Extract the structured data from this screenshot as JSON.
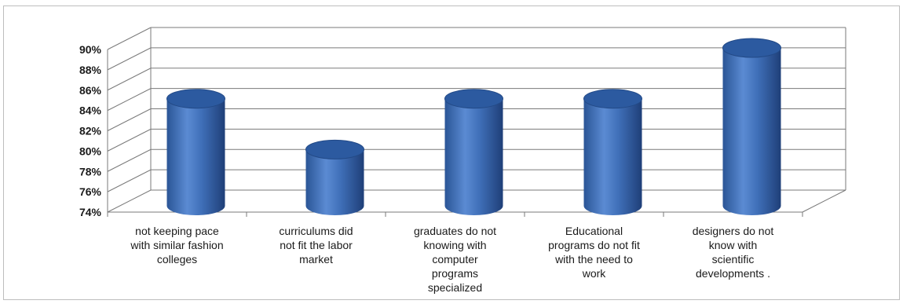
{
  "chart_data": {
    "type": "bar",
    "style": "3d-cylinder",
    "categories": [
      [
        "not keeping pace",
        "with similar fashion",
        "colleges"
      ],
      [
        "curriculums did",
        "not fit the labor",
        "market"
      ],
      [
        "graduates do not",
        "knowing with",
        "computer",
        "programs",
        "specialized"
      ],
      [
        "Educational",
        "programs do not fit",
        "with the need to",
        "work"
      ],
      [
        "designers do not",
        "know with",
        "scientific",
        "developments ."
      ]
    ],
    "values": [
      85,
      80,
      85,
      85,
      90
    ],
    "ylim": [
      74,
      90
    ],
    "yticks": [
      "74%",
      "76%",
      "78%",
      "80%",
      "82%",
      "84%",
      "86%",
      "88%",
      "90%"
    ],
    "grid": true,
    "legend": "none",
    "colors": {
      "bar": "#3f6fb8",
      "bar_dark": "#22467f",
      "bar_light": "#7fa6e0",
      "grid": "#7a7a7a"
    }
  }
}
